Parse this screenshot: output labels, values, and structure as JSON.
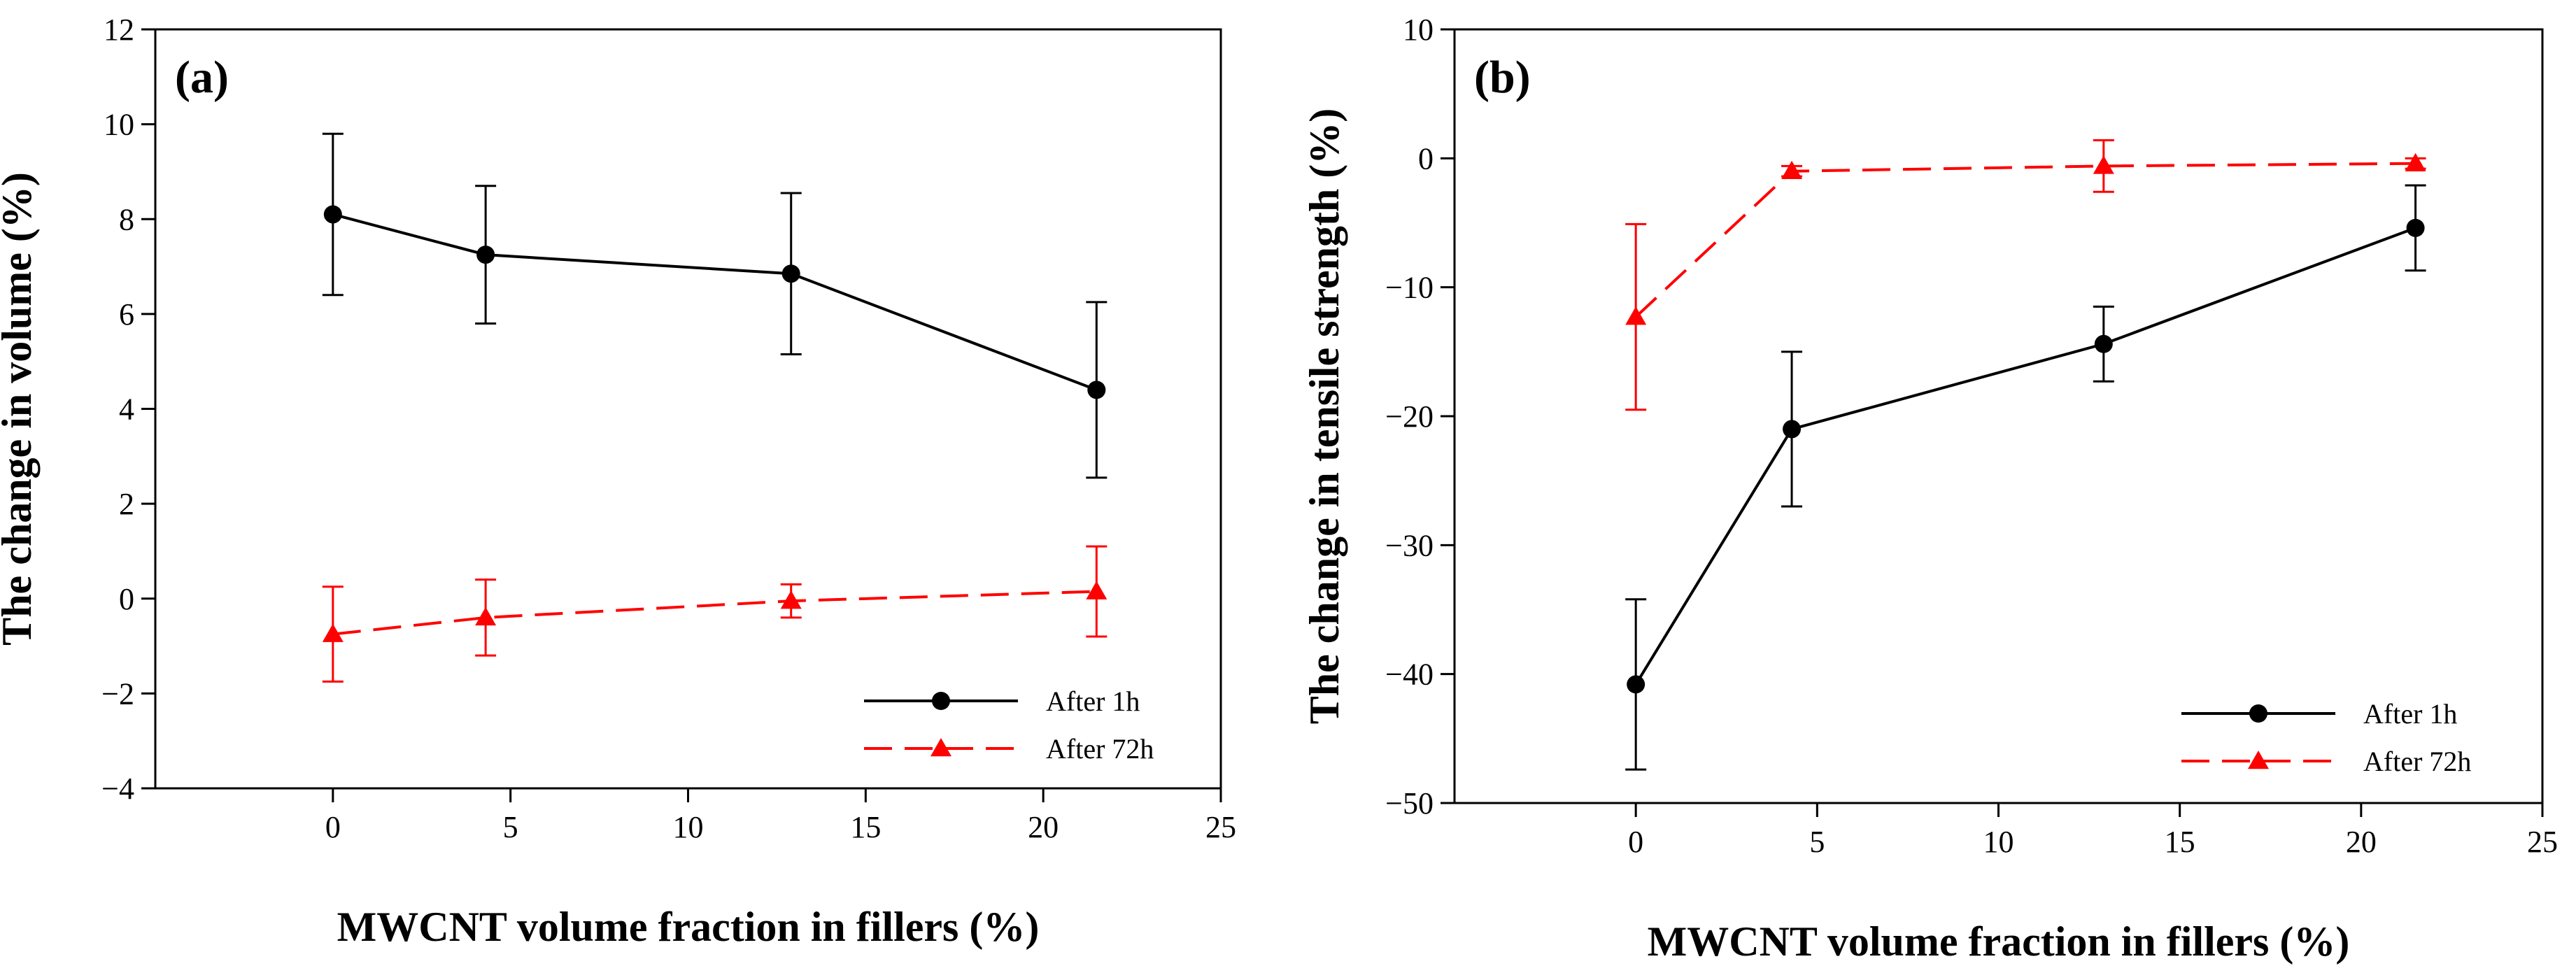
{
  "chart_data": [
    {
      "type": "line",
      "panel_label": "(a)",
      "xlabel": "MWCNT volume fraction in fillers (%)",
      "ylabel": "The change in volume (%)",
      "xlim": [
        -5,
        25
      ],
      "ylim": [
        -4,
        12
      ],
      "xticks": [
        0,
        5,
        10,
        15,
        20,
        25
      ],
      "xtick_labels": [
        "0",
        "5",
        "10",
        "15",
        "20",
        "25"
      ],
      "yticks": [
        -4,
        -2,
        0,
        2,
        4,
        6,
        8,
        10,
        12
      ],
      "ytick_labels": [
        "−4",
        "−2",
        "0",
        "2",
        "4",
        "6",
        "8",
        "10",
        "12"
      ],
      "legend_position": "bottom-right",
      "series": [
        {
          "name": "After 1h",
          "color": "#000000",
          "dash": "solid",
          "marker": "circle",
          "x": [
            0,
            4.3,
            12.9,
            21.5
          ],
          "y": [
            8.1,
            7.25,
            6.85,
            4.4
          ],
          "err": [
            1.7,
            1.45,
            1.7,
            1.85
          ]
        },
        {
          "name": "After 72h",
          "color": "#ff0000",
          "dash": "dashed",
          "marker": "triangle",
          "x": [
            0,
            4.3,
            12.9,
            21.5
          ],
          "y": [
            -0.75,
            -0.4,
            -0.05,
            0.15
          ],
          "err": [
            1.0,
            0.8,
            0.35,
            0.95
          ]
        }
      ]
    },
    {
      "type": "line",
      "panel_label": "(b)",
      "xlabel": "MWCNT volume fraction in fillers (%)",
      "ylabel": "The change in tensile strength (%)",
      "xlim": [
        -5,
        25
      ],
      "ylim": [
        -50,
        10
      ],
      "xticks": [
        0,
        5,
        10,
        15,
        20,
        25
      ],
      "xtick_labels": [
        "0",
        "5",
        "10",
        "15",
        "20",
        "25"
      ],
      "yticks": [
        -50,
        -40,
        -30,
        -20,
        -10,
        0,
        10
      ],
      "ytick_labels": [
        "−50",
        "−40",
        "−30",
        "−20",
        "−10",
        "0",
        "10"
      ],
      "legend_position": "bottom-right",
      "series": [
        {
          "name": "After 1h",
          "color": "#000000",
          "dash": "solid",
          "marker": "circle",
          "x": [
            0,
            4.3,
            12.9,
            21.5
          ],
          "y": [
            -40.8,
            -21.0,
            -14.4,
            -5.4
          ],
          "err": [
            6.6,
            6.0,
            2.9,
            3.3
          ]
        },
        {
          "name": "After 72h",
          "color": "#ff0000",
          "dash": "dashed",
          "marker": "triangle",
          "x": [
            0,
            4.3,
            12.9,
            21.5
          ],
          "y": [
            -12.3,
            -1.0,
            -0.6,
            -0.4
          ],
          "err": [
            7.2,
            0.4,
            2.0,
            0.4
          ]
        }
      ]
    }
  ]
}
